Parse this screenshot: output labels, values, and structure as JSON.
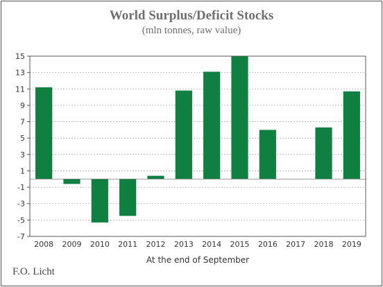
{
  "chart_data": {
    "type": "bar",
    "title": "World Surplus/Deficit Stocks",
    "subtitle": "(mln tonnes, raw value)",
    "xlabel": "At the end of September",
    "ylabel": "",
    "categories": [
      "2008",
      "2009",
      "2010",
      "2011",
      "2012",
      "2013",
      "2014",
      "2015",
      "2016",
      "2017",
      "2018",
      "2019"
    ],
    "values": [
      11.2,
      -0.6,
      -5.3,
      -4.5,
      0.4,
      10.8,
      13.1,
      15.0,
      6.0,
      0.0,
      6.3,
      10.7
    ],
    "ylim": [
      -7,
      15
    ],
    "yticks": [
      -7,
      -5,
      -3,
      -1,
      1,
      3,
      5,
      7,
      9,
      11,
      13,
      15
    ],
    "grid": true,
    "bar_color": "#108040",
    "grid_color": "#aaaaaa"
  },
  "source": "F.O. Licht"
}
